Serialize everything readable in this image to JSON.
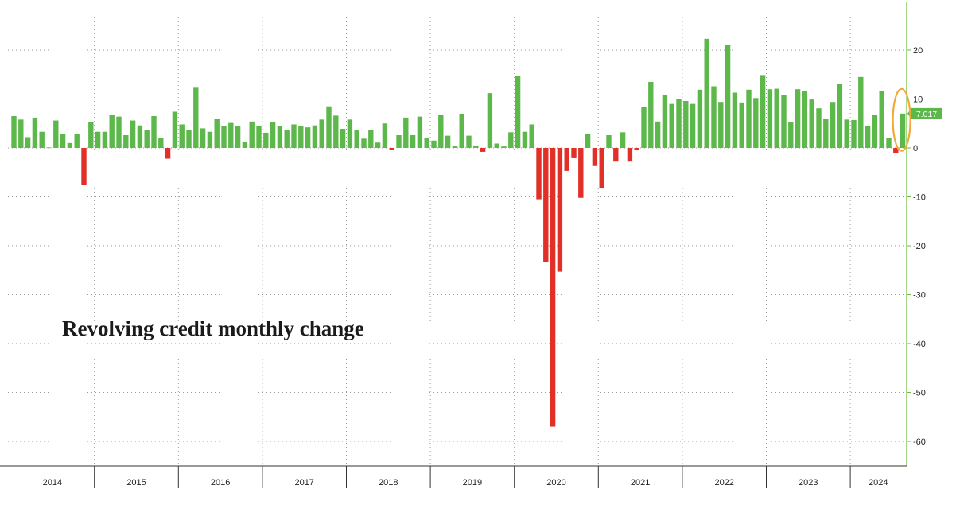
{
  "chart_data": {
    "type": "bar",
    "title": "Revolving credit monthly change",
    "xlabel": "",
    "ylabel": "",
    "ylim": [
      -65,
      29
    ],
    "yticks": [
      20,
      10,
      0,
      -10,
      -20,
      -30,
      -40,
      -50,
      -60
    ],
    "grid": true,
    "x_start": "2014-01",
    "years": [
      "2014",
      "2015",
      "2016",
      "2017",
      "2018",
      "2019",
      "2020",
      "2021",
      "2022",
      "2023",
      "2024"
    ],
    "values": [
      6.5,
      5.8,
      2.2,
      6.2,
      3.3,
      0.1,
      5.6,
      2.8,
      1.0,
      2.8,
      -7.5,
      5.2,
      3.3,
      3.3,
      6.8,
      6.4,
      2.6,
      5.6,
      4.6,
      3.6,
      6.5,
      2.0,
      -2.2,
      7.4,
      4.8,
      3.7,
      12.3,
      4.0,
      3.3,
      5.9,
      4.5,
      5.1,
      4.5,
      1.2,
      5.4,
      4.4,
      3.1,
      5.3,
      4.5,
      3.6,
      4.8,
      4.4,
      4.2,
      4.6,
      5.8,
      8.5,
      6.6,
      3.9,
      5.8,
      3.6,
      1.9,
      3.6,
      1.1,
      5.0,
      -0.4,
      2.6,
      6.2,
      2.6,
      6.4,
      2.0,
      1.5,
      6.7,
      2.5,
      0.4,
      7.0,
      2.5,
      0.5,
      -0.8,
      11.2,
      0.9,
      0.3,
      3.2,
      14.8,
      3.3,
      4.8,
      -10.5,
      -23.4,
      -57.0,
      -25.3,
      -4.7,
      -2.1,
      -10.2,
      2.8,
      -3.7,
      -8.3,
      2.6,
      -2.8,
      3.2,
      -2.8,
      -0.5,
      8.4,
      13.5,
      5.4,
      10.8,
      9.0,
      10.0,
      9.6,
      9.0,
      11.9,
      22.3,
      12.6,
      9.4,
      21.1,
      11.3,
      9.3,
      11.9,
      10.2,
      14.9,
      12.0,
      12.1,
      10.8,
      5.2,
      12.0,
      11.7,
      9.9,
      8.1,
      5.9,
      9.4,
      13.1,
      5.8,
      5.7,
      14.5,
      4.4,
      6.7,
      11.6,
      2.1,
      -1.0,
      7.017
    ],
    "last_value_label": "7.017",
    "colors": {
      "positive": "#5cb84a",
      "negative": "#e03028",
      "axis": "#6bbf3c",
      "last_label_bg": "#5cb84a",
      "highlight_ring": "#f2a93b"
    }
  }
}
